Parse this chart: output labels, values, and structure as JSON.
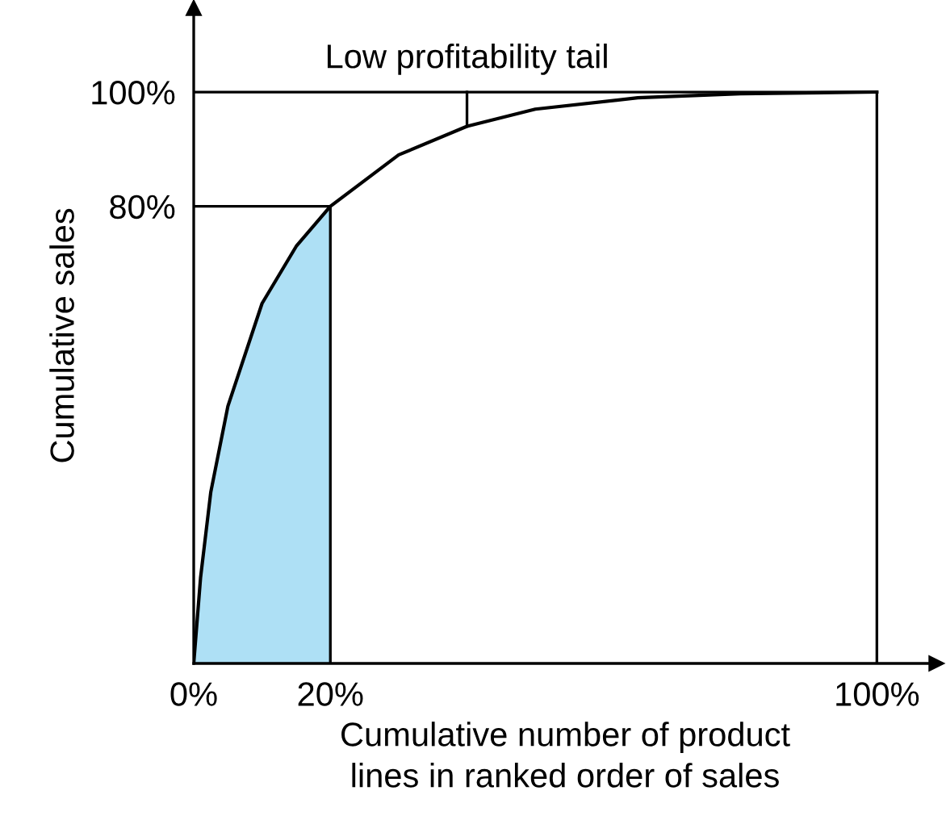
{
  "chart_data": {
    "type": "line",
    "xlabel": "Cumulative number of product\nlines in ranked order of sales",
    "ylabel": "Cumulative sales",
    "x": [
      0,
      1,
      2.5,
      5,
      10,
      15,
      20,
      30,
      40,
      50,
      65,
      80,
      100
    ],
    "series": [
      {
        "color": "#000000",
        "values": [
          0,
          15,
          30,
          45,
          63,
          73,
          80,
          89,
          94,
          97,
          99,
          99.7,
          100
        ]
      },
      {
        "type": "area",
        "color": "#aee0f5",
        "x": [
          0,
          1,
          2.5,
          5,
          10,
          15,
          20
        ],
        "values": [
          0,
          15,
          30,
          45,
          63,
          73,
          80
        ]
      }
    ],
    "xlim": [
      0,
      108.7
    ],
    "ylim": [
      0,
      114.7
    ],
    "xticks": [
      {
        "value": 0,
        "label": "0%"
      },
      {
        "value": 20,
        "label": "20%"
      },
      {
        "value": 100,
        "label": "100%"
      }
    ],
    "yticks": [
      {
        "value": 80,
        "label": "80%"
      },
      {
        "value": 100,
        "label": "100%"
      }
    ],
    "ref_lines": [
      {
        "axis": "y",
        "value": 100
      },
      {
        "axis": "y",
        "value": 80
      },
      {
        "axis": "x",
        "value": 20
      },
      {
        "axis": "x",
        "value": 100
      }
    ],
    "annotations": [
      {
        "text": "Low profitability tail",
        "x": 40,
        "y": 94
      }
    ],
    "grid": false,
    "legend": false,
    "marker": "none",
    "line_style": "solid"
  }
}
